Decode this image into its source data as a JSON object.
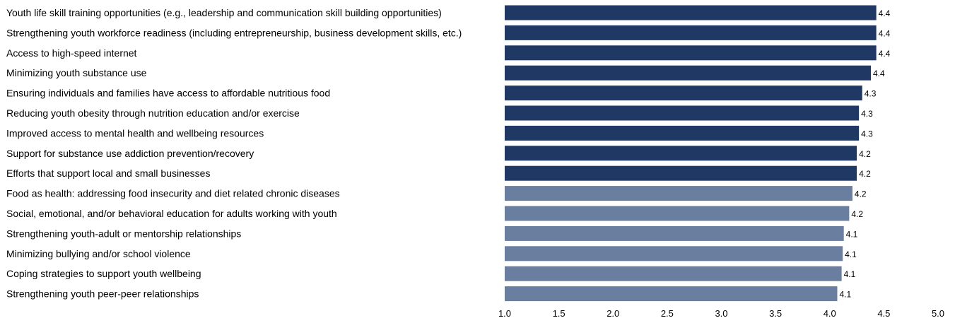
{
  "chart_data": {
    "type": "bar",
    "orientation": "horizontal",
    "categories": [
      "Youth life skill training opportunities (e.g., leadership and communication skill building opportunities)",
      "Strengthening youth workforce readiness (including entrepreneurship, business development skills, etc.)",
      "Access to high-speed internet",
      "Minimizing youth substance use",
      "Ensuring individuals and families have access to affordable nutritious food",
      "Reducing youth obesity through nutrition education and/or exercise",
      "Improved access to mental health and wellbeing resources",
      "Support for substance use addiction prevention/recovery",
      "Efforts that support local and small businesses",
      "Food as health: addressing food insecurity and diet related chronic diseases",
      "Social, emotional, and/or behavioral education for adults working with youth",
      "Strengthening youth-adult or mentorship relationships",
      "Minimizing bullying and/or school violence",
      "Coping strategies to support youth wellbeing",
      "Strengthening youth peer-peer relationships"
    ],
    "values": [
      4.43,
      4.43,
      4.43,
      4.38,
      4.3,
      4.27,
      4.27,
      4.25,
      4.25,
      4.21,
      4.18,
      4.13,
      4.12,
      4.11,
      4.07
    ],
    "data_labels": [
      "4.4",
      "4.4",
      "4.4",
      "4.4",
      "4.3",
      "4.3",
      "4.3",
      "4.2",
      "4.2",
      "4.2",
      "4.2",
      "4.1",
      "4.1",
      "4.1",
      "4.1"
    ],
    "bar_colors": [
      "#1f3864",
      "#1f3864",
      "#1f3864",
      "#1f3864",
      "#1f3864",
      "#1f3864",
      "#1f3864",
      "#1f3864",
      "#1f3864",
      "#6a7ea0",
      "#6a7ea0",
      "#6a7ea0",
      "#6a7ea0",
      "#6a7ea0",
      "#6a7ea0"
    ],
    "xlim": [
      1.0,
      5.0
    ],
    "xticks": [
      1.0,
      1.5,
      2.0,
      2.5,
      3.0,
      3.5,
      4.0,
      4.5,
      5.0
    ],
    "xtick_labels": [
      "1.0",
      "1.5",
      "2.0",
      "2.5",
      "3.0",
      "3.5",
      "4.0",
      "4.5",
      "5.0"
    ],
    "title": "",
    "xlabel": "",
    "ylabel": "",
    "grid": false,
    "legend": "none"
  }
}
